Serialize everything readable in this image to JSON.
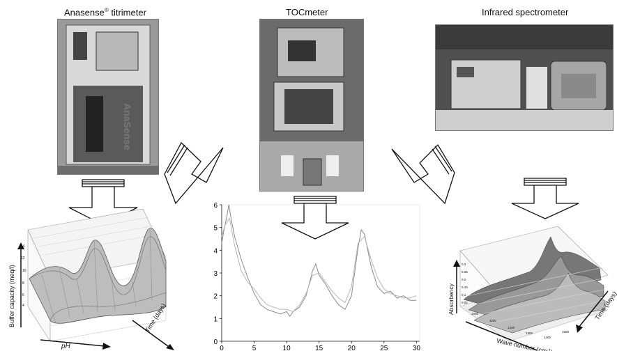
{
  "instruments": {
    "titrimeter": {
      "name": "Anasense",
      "reg": "®",
      "suffix": " titrimeter",
      "panel_text": "AnaSense"
    },
    "tocmeter": {
      "name": "TOCmeter"
    },
    "spectrometer": {
      "name": "Infrared spectrometer"
    }
  },
  "left_plot": {
    "ylabel": "Buffer capacity  (meq/l)",
    "xlabel": "pH",
    "zlabel": "Time (days)",
    "y_ticks": [
      "4",
      "6",
      "8",
      "10",
      "12",
      "14"
    ]
  },
  "right_plot": {
    "ylabel": "Absorbency",
    "xlabel": "Wave number  (cm",
    "xlabel_sup": "-1",
    "xlabel_end": ")",
    "zlabel": "Time (days)",
    "y_ticks": [
      "0.05",
      "0.1",
      "0.15",
      "0.2",
      "0.25",
      "0.3"
    ],
    "x_ticks": [
      "1000",
      "1100",
      "1200",
      "1300",
      "1400",
      "1500"
    ]
  },
  "chart_data": {
    "type": "line",
    "x_ticks": [
      "0",
      "5",
      "10",
      "15",
      "20",
      "25",
      "30"
    ],
    "y_ticks": [
      "0",
      "1",
      "2",
      "3",
      "4",
      "5",
      "6"
    ],
    "xlim": [
      0,
      30.5
    ],
    "ylim": [
      0,
      6
    ],
    "series": [
      {
        "values": [
          [
            0,
            4.3
          ],
          [
            0.3,
            4.8
          ],
          [
            0.8,
            5.5
          ],
          [
            1.1,
            6.0
          ],
          [
            1.5,
            5.3
          ],
          [
            2,
            4.6
          ],
          [
            3,
            3.6
          ],
          [
            4,
            2.8
          ],
          [
            5,
            2.1
          ],
          [
            6,
            1.6
          ],
          [
            7,
            1.4
          ],
          [
            8,
            1.3
          ],
          [
            9,
            1.2
          ],
          [
            10,
            1.3
          ],
          [
            10.5,
            1.1
          ],
          [
            11,
            1.3
          ],
          [
            12,
            1.5
          ],
          [
            13,
            2.0
          ],
          [
            14,
            3.1
          ],
          [
            14.5,
            3.4
          ],
          [
            15,
            2.9
          ],
          [
            16,
            2.5
          ],
          [
            17,
            2.0
          ],
          [
            18,
            1.6
          ],
          [
            19,
            1.4
          ],
          [
            20,
            2.0
          ],
          [
            21,
            4.1
          ],
          [
            21.5,
            4.9
          ],
          [
            22,
            4.7
          ],
          [
            23,
            3.3
          ],
          [
            24,
            2.4
          ],
          [
            25,
            2.1
          ],
          [
            26,
            2.2
          ],
          [
            27,
            1.9
          ],
          [
            28,
            2.0
          ],
          [
            29,
            1.8
          ],
          [
            30,
            1.8
          ]
        ]
      },
      {
        "values": [
          [
            0,
            4.6
          ],
          [
            0.5,
            5.1
          ],
          [
            1.2,
            5.4
          ],
          [
            2,
            4.2
          ],
          [
            3,
            3.1
          ],
          [
            4,
            2.6
          ],
          [
            5,
            2.3
          ],
          [
            6,
            1.9
          ],
          [
            7,
            1.6
          ],
          [
            8,
            1.5
          ],
          [
            9,
            1.4
          ],
          [
            10,
            1.4
          ],
          [
            11,
            1.3
          ],
          [
            12,
            1.6
          ],
          [
            13,
            2.1
          ],
          [
            14,
            2.9
          ],
          [
            15,
            3.0
          ],
          [
            16,
            2.6
          ],
          [
            17,
            2.2
          ],
          [
            18,
            1.9
          ],
          [
            19,
            1.7
          ],
          [
            20,
            2.4
          ],
          [
            21,
            4.3
          ],
          [
            22,
            4.6
          ],
          [
            23,
            3.6
          ],
          [
            24,
            2.8
          ],
          [
            25,
            2.3
          ],
          [
            26,
            2.1
          ],
          [
            27,
            2.0
          ],
          [
            28,
            1.9
          ],
          [
            29,
            1.9
          ],
          [
            30,
            2.0
          ]
        ]
      }
    ]
  },
  "colors": {
    "line1": "#8a8a8a",
    "line2": "#b5b5b5",
    "grid": "#c8c8c8",
    "arrow_fill": "#ffffff",
    "stroke": "#111111"
  }
}
